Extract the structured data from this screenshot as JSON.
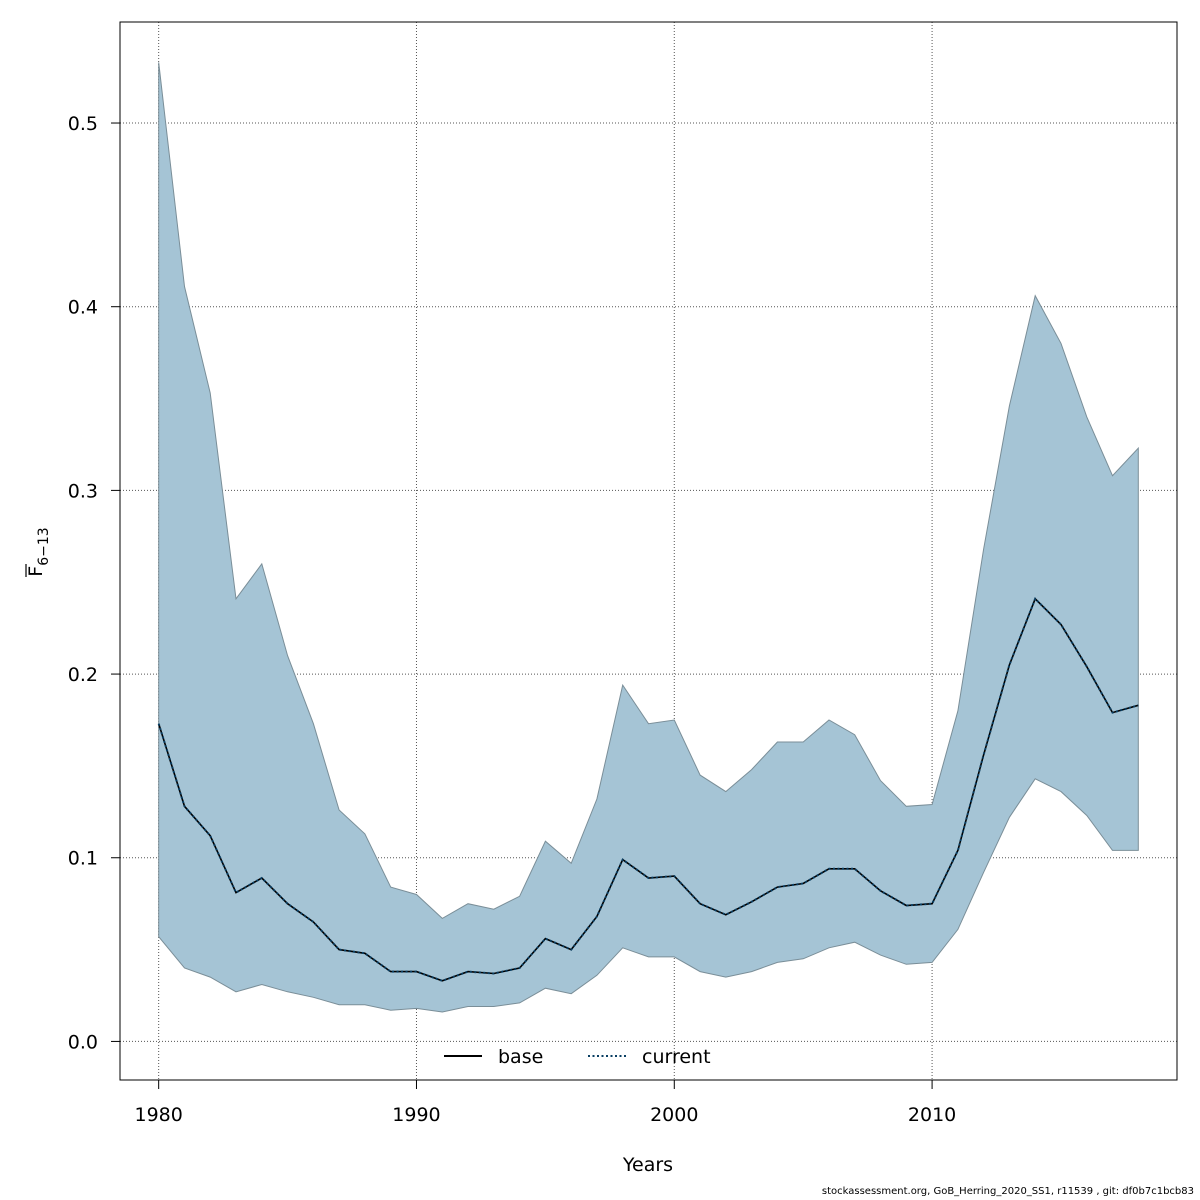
{
  "chart_data": {
    "type": "line",
    "xlabel": "Years",
    "ylabel": {
      "base": "F",
      "subscript": "6−13"
    },
    "xlim": [
      1978.5,
      2019.5
    ],
    "ylim": [
      -0.021,
      0.555
    ],
    "x_ticks": [
      1980,
      1990,
      2000,
      2010
    ],
    "x_tick_labels": [
      "1980",
      "1990",
      "2000",
      "2010"
    ],
    "y_ticks": [
      0.0,
      0.1,
      0.2,
      0.3,
      0.4,
      0.5
    ],
    "y_tick_labels": [
      "0.0",
      "0.1",
      "0.2",
      "0.3",
      "0.4",
      "0.5"
    ],
    "grid": true,
    "legend_position": "bottom-center",
    "colors": {
      "band": "#a5c4d5",
      "band_edge": "#7a8e98",
      "current": "#0a3f63",
      "base": "#000000",
      "grid": "#555555"
    },
    "years": [
      1980,
      1981,
      1982,
      1983,
      1984,
      1985,
      1986,
      1987,
      1988,
      1989,
      1990,
      1991,
      1992,
      1993,
      1994,
      1995,
      1996,
      1997,
      1998,
      1999,
      2000,
      2001,
      2002,
      2003,
      2004,
      2005,
      2006,
      2007,
      2008,
      2009,
      2010,
      2011,
      2012,
      2013,
      2014,
      2015,
      2016,
      2017,
      2018
    ],
    "upper": [
      0.533,
      0.411,
      0.353,
      0.241,
      0.26,
      0.21,
      0.173,
      0.126,
      0.113,
      0.084,
      0.08,
      0.067,
      0.075,
      0.072,
      0.079,
      0.109,
      0.097,
      0.132,
      0.194,
      0.173,
      0.175,
      0.145,
      0.136,
      0.148,
      0.163,
      0.163,
      0.175,
      0.167,
      0.142,
      0.128,
      0.129,
      0.18,
      0.268,
      0.346,
      0.406,
      0.38,
      0.34,
      0.308,
      0.323
    ],
    "lower": [
      0.057,
      0.04,
      0.035,
      0.027,
      0.031,
      0.027,
      0.024,
      0.02,
      0.02,
      0.017,
      0.018,
      0.016,
      0.019,
      0.019,
      0.021,
      0.029,
      0.026,
      0.036,
      0.051,
      0.046,
      0.046,
      0.038,
      0.035,
      0.038,
      0.043,
      0.045,
      0.051,
      0.054,
      0.047,
      0.042,
      0.043,
      0.061,
      0.092,
      0.122,
      0.143,
      0.136,
      0.123,
      0.104,
      0.104
    ],
    "series": [
      {
        "name": "base",
        "style": "solid",
        "values": [
          0.173,
          0.128,
          0.112,
          0.081,
          0.089,
          0.075,
          0.065,
          0.05,
          0.048,
          0.038,
          0.038,
          0.033,
          0.038,
          0.037,
          0.04,
          0.056,
          0.05,
          0.068,
          0.099,
          0.089,
          0.09,
          0.075,
          0.069,
          0.076,
          0.084,
          0.086,
          0.094,
          0.094,
          0.082,
          0.074,
          0.075,
          0.104,
          0.156,
          0.205,
          0.241,
          0.227,
          0.204,
          0.179,
          0.183
        ]
      },
      {
        "name": "current",
        "style": "dotted",
        "values": [
          0.173,
          0.128,
          0.112,
          0.081,
          0.089,
          0.075,
          0.065,
          0.05,
          0.048,
          0.038,
          0.038,
          0.033,
          0.038,
          0.037,
          0.04,
          0.056,
          0.05,
          0.068,
          0.099,
          0.089,
          0.09,
          0.075,
          0.069,
          0.076,
          0.084,
          0.086,
          0.094,
          0.094,
          0.082,
          0.074,
          0.075,
          0.104,
          0.156,
          0.205,
          0.241,
          0.227,
          0.204,
          0.179,
          0.183
        ]
      }
    ]
  },
  "footer": "stockassessment.org, GoB_Herring_2020_SS1, r11539 , git: df0b7c1bcb83"
}
